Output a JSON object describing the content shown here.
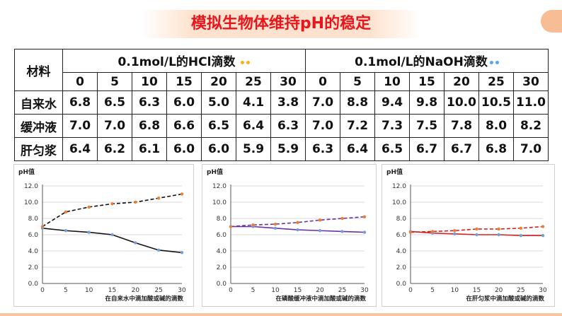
{
  "title": "模拟生物体维持pH的稳定",
  "table": {
    "material_header": "材料",
    "hcl_header": "0.1mol/L的HCl滴数",
    "naoh_header": "0.1mol/L的NaOH滴数",
    "drops": [
      "0",
      "5",
      "10",
      "15",
      "20",
      "25",
      "30"
    ],
    "rows": [
      {
        "name": "自来水",
        "hcl": [
          "6.8",
          "6.5",
          "6.3",
          "6.0",
          "5.0",
          "4.1",
          "3.8"
        ],
        "naoh": [
          "7.0",
          "8.8",
          "9.4",
          "9.8",
          "10.0",
          "10.5",
          "11.0"
        ]
      },
      {
        "name": "缓冲液",
        "hcl": [
          "7.0",
          "7.0",
          "6.8",
          "6.6",
          "6.5",
          "6.4",
          "6.3"
        ],
        "naoh": [
          "7.0",
          "7.2",
          "7.3",
          "7.5",
          "7.8",
          "8.0",
          "8.2"
        ]
      },
      {
        "name": "肝匀浆",
        "hcl": [
          "6.4",
          "6.2",
          "6.1",
          "6.0",
          "6.0",
          "5.9",
          "5.9"
        ],
        "naoh": [
          "6.3",
          "6.4",
          "6.5",
          "6.7",
          "6.7",
          "6.8",
          "7.0"
        ]
      }
    ]
  },
  "chart_data": [
    {
      "type": "line",
      "ylabel": "pH值",
      "xlabel": "在自来水中滴加酸或碱的滴数",
      "x": [
        0,
        5,
        10,
        15,
        20,
        25,
        30
      ],
      "ylim": [
        0,
        12
      ],
      "yticks": [
        "0.0",
        "2.0",
        "4.0",
        "6.0",
        "8.0",
        "10.0",
        "12.0"
      ],
      "series": [
        {
          "name": "HCl",
          "values": [
            6.8,
            6.5,
            6.3,
            6.0,
            5.0,
            4.1,
            3.8
          ],
          "color": "#111111",
          "marker": "#6f9fd8",
          "dashed": false
        },
        {
          "name": "NaOH",
          "values": [
            7.0,
            8.8,
            9.4,
            9.8,
            10.0,
            10.5,
            11.0
          ],
          "color": "#111111",
          "marker": "#ed7d31",
          "dashed": true
        }
      ]
    },
    {
      "type": "line",
      "ylabel": "pH值",
      "xlabel": "在磷酸缓冲液中滴加酸或碱的滴数",
      "x": [
        0,
        5,
        10,
        15,
        20,
        25,
        30
      ],
      "ylim": [
        0,
        12
      ],
      "yticks": [
        "0.0",
        "2.0",
        "4.0",
        "6.0",
        "8.0",
        "10.0",
        "12.0"
      ],
      "series": [
        {
          "name": "HCl",
          "values": [
            7.0,
            7.0,
            6.8,
            6.6,
            6.5,
            6.4,
            6.3
          ],
          "color": "#6a2fa3",
          "marker": "#6f9fd8",
          "dashed": false
        },
        {
          "name": "NaOH",
          "values": [
            7.0,
            7.2,
            7.3,
            7.5,
            7.8,
            8.0,
            8.2
          ],
          "color": "#6a2fa3",
          "marker": "#ed7d31",
          "dashed": true
        }
      ]
    },
    {
      "type": "line",
      "ylabel": "pH值",
      "xlabel": "在肝匀浆中滴加酸或碱的滴数",
      "x": [
        0,
        5,
        10,
        15,
        20,
        25,
        30
      ],
      "ylim": [
        0,
        12
      ],
      "yticks": [
        "0.0",
        "2.0",
        "4.0",
        "6.0",
        "8.0",
        "10.0",
        "12.0"
      ],
      "series": [
        {
          "name": "HCl",
          "values": [
            6.4,
            6.2,
            6.1,
            6.0,
            6.0,
            5.9,
            5.9
          ],
          "color": "#d42020",
          "marker": "#6f9fd8",
          "dashed": false
        },
        {
          "name": "NaOH",
          "values": [
            6.3,
            6.4,
            6.5,
            6.7,
            6.7,
            6.8,
            7.0
          ],
          "color": "#d42020",
          "marker": "#ed7d31",
          "dashed": true
        }
      ]
    }
  ]
}
